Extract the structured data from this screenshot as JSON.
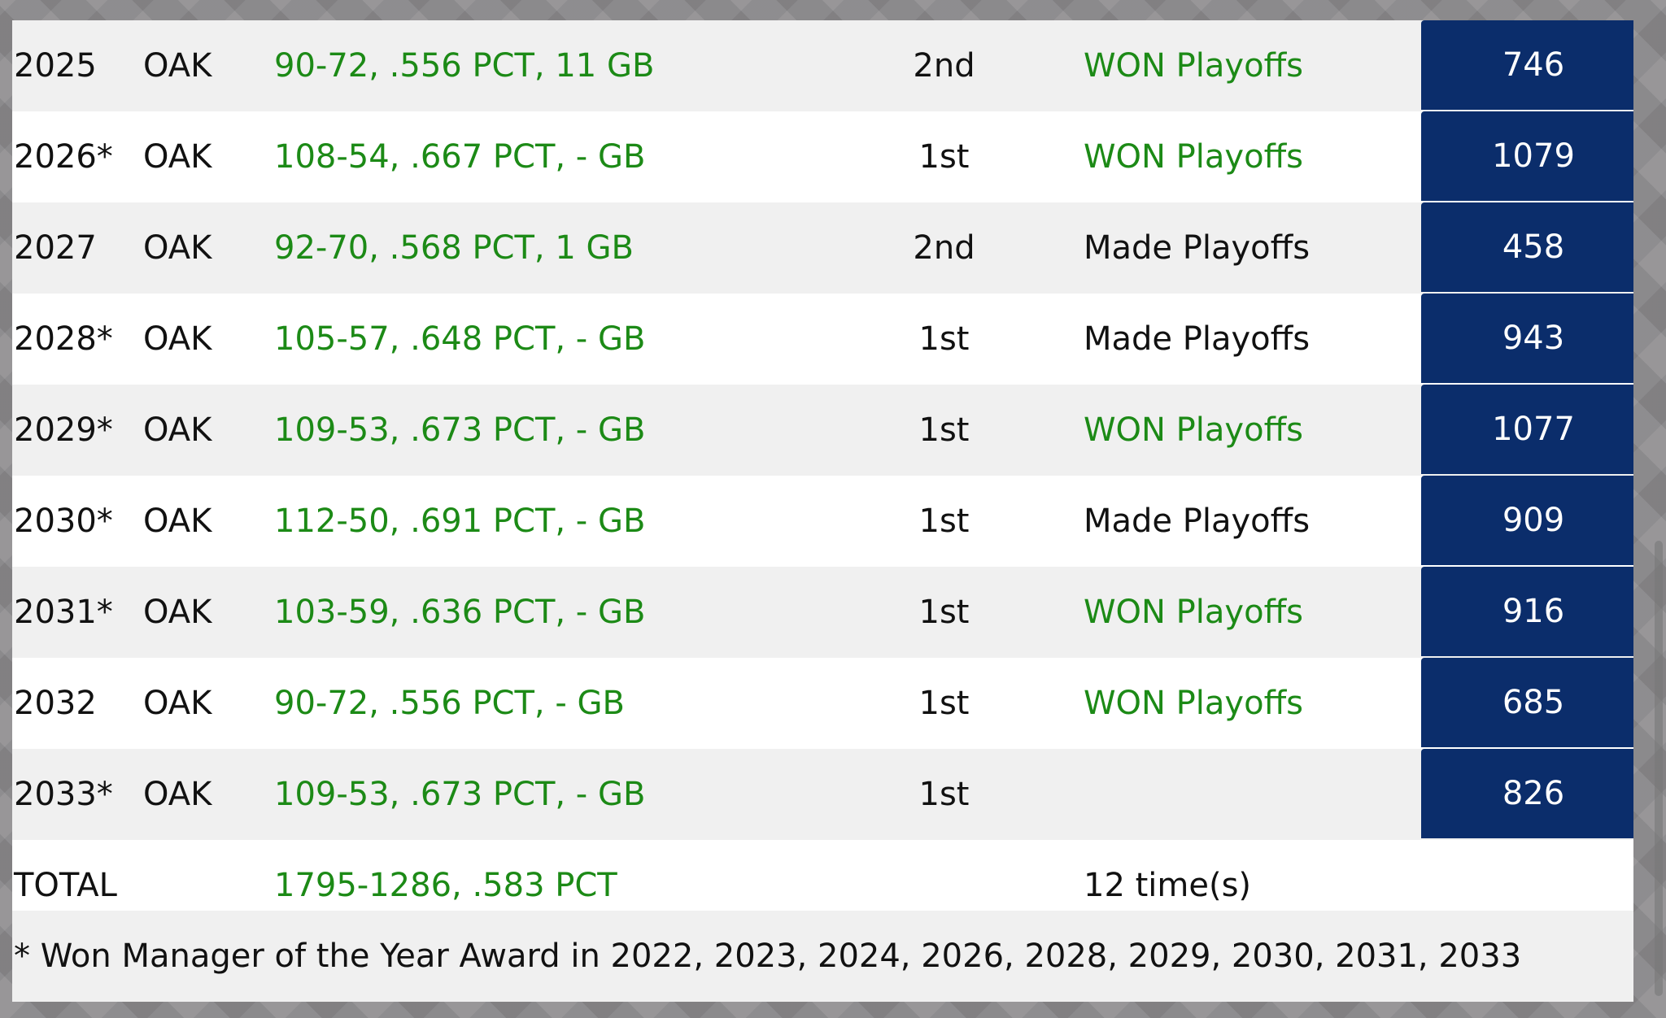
{
  "rows": [
    {
      "year": "2025",
      "team": "OAK",
      "record": "90-72, .556 PCT, 11 GB",
      "finish": "2nd",
      "result": "WON Playoffs",
      "won": true,
      "value": "746"
    },
    {
      "year": "2026*",
      "team": "OAK",
      "record": "108-54, .667 PCT, - GB",
      "finish": "1st",
      "result": "WON Playoffs",
      "won": true,
      "value": "1079"
    },
    {
      "year": "2027",
      "team": "OAK",
      "record": "92-70, .568 PCT, 1 GB",
      "finish": "2nd",
      "result": "Made Playoffs",
      "won": false,
      "value": "458"
    },
    {
      "year": "2028*",
      "team": "OAK",
      "record": "105-57, .648 PCT, - GB",
      "finish": "1st",
      "result": "Made Playoffs",
      "won": false,
      "value": "943"
    },
    {
      "year": "2029*",
      "team": "OAK",
      "record": "109-53, .673 PCT, - GB",
      "finish": "1st",
      "result": "WON Playoffs",
      "won": true,
      "value": "1077"
    },
    {
      "year": "2030*",
      "team": "OAK",
      "record": "112-50, .691 PCT, - GB",
      "finish": "1st",
      "result": "Made Playoffs",
      "won": false,
      "value": "909"
    },
    {
      "year": "2031*",
      "team": "OAK",
      "record": "103-59, .636 PCT, - GB",
      "finish": "1st",
      "result": "WON Playoffs",
      "won": true,
      "value": "916"
    },
    {
      "year": "2032",
      "team": "OAK",
      "record": "90-72, .556 PCT, - GB",
      "finish": "1st",
      "result": "WON Playoffs",
      "won": true,
      "value": "685"
    },
    {
      "year": "2033*",
      "team": "OAK",
      "record": "109-53, .673 PCT, - GB",
      "finish": "1st",
      "result": "",
      "won": false,
      "value": "826"
    }
  ],
  "total": {
    "label": "TOTAL",
    "record": "1795-1286, .583 PCT",
    "playoffs": "12 time(s)"
  },
  "footnote": "* Won Manager of the Year Award in 2022, 2023, 2024, 2026, 2028, 2029, 2030, 2031, 2033",
  "colors": {
    "record_green": "#1c8a16",
    "value_bg": "#0b2d6b",
    "row_shade": "#f0f0f0"
  }
}
